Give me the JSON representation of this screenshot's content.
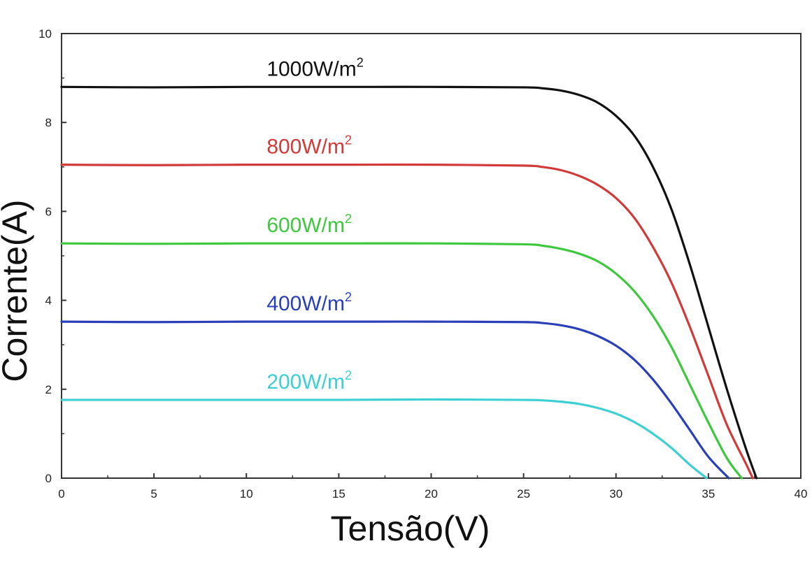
{
  "chart_data": {
    "type": "line",
    "xlabel": "Tensão(V)",
    "ylabel": "Corrente(A)",
    "xlim": [
      0,
      40
    ],
    "ylim": [
      0,
      10
    ],
    "xticks": [
      0,
      5,
      10,
      15,
      20,
      25,
      30,
      35,
      40
    ],
    "yticks": [
      0,
      2,
      4,
      6,
      8,
      10
    ],
    "grid": false,
    "series": [
      {
        "name": "1000W/m²",
        "label_base": "1000W/m",
        "label_sup": "2",
        "color": "#111111",
        "x": [
          0,
          5,
          10,
          15,
          20,
          25,
          26,
          27,
          28,
          29,
          30,
          31,
          32,
          33,
          34,
          35,
          36,
          37,
          37.6
        ],
        "y": [
          8.8,
          8.79,
          8.8,
          8.8,
          8.8,
          8.79,
          8.77,
          8.72,
          8.62,
          8.45,
          8.15,
          7.7,
          7.0,
          6.05,
          4.8,
          3.4,
          2.0,
          0.7,
          0
        ]
      },
      {
        "name": "800W/m²",
        "label_base": "800W/m",
        "label_sup": "2",
        "color": "#d23a3a",
        "x": [
          0,
          5,
          10,
          15,
          20,
          25,
          26,
          27,
          28,
          29,
          30,
          31,
          32,
          33,
          34,
          35,
          36,
          37,
          37.4
        ],
        "y": [
          7.05,
          7.04,
          7.05,
          7.05,
          7.05,
          7.03,
          7.0,
          6.93,
          6.8,
          6.6,
          6.3,
          5.85,
          5.2,
          4.4,
          3.4,
          2.3,
          1.2,
          0.35,
          0
        ]
      },
      {
        "name": "600W/m²",
        "label_base": "600W/m",
        "label_sup": "2",
        "color": "#3ec83e",
        "x": [
          0,
          5,
          10,
          15,
          20,
          25,
          26,
          27,
          28,
          29,
          30,
          31,
          32,
          33,
          34,
          35,
          36,
          36.8
        ],
        "y": [
          5.28,
          5.27,
          5.28,
          5.28,
          5.28,
          5.26,
          5.23,
          5.16,
          5.05,
          4.88,
          4.6,
          4.2,
          3.65,
          2.95,
          2.1,
          1.25,
          0.45,
          0
        ]
      },
      {
        "name": "400W/m²",
        "label_base": "400W/m",
        "label_sup": "2",
        "color": "#2b3fb8",
        "x": [
          0,
          5,
          10,
          15,
          20,
          25,
          26,
          27,
          28,
          29,
          30,
          31,
          32,
          33,
          34,
          35,
          36.1
        ],
        "y": [
          3.52,
          3.51,
          3.52,
          3.52,
          3.52,
          3.51,
          3.49,
          3.44,
          3.35,
          3.2,
          2.98,
          2.66,
          2.22,
          1.68,
          1.08,
          0.48,
          0
        ]
      },
      {
        "name": "200W/m²",
        "label_base": "200W/m",
        "label_sup": "2",
        "color": "#3ccfd3",
        "x": [
          0,
          5,
          10,
          15,
          20,
          25,
          26,
          27,
          28,
          29,
          30,
          31,
          32,
          33,
          34,
          34.9
        ],
        "y": [
          1.76,
          1.76,
          1.76,
          1.76,
          1.77,
          1.76,
          1.75,
          1.72,
          1.67,
          1.58,
          1.45,
          1.26,
          1.0,
          0.68,
          0.3,
          0
        ]
      }
    ]
  }
}
